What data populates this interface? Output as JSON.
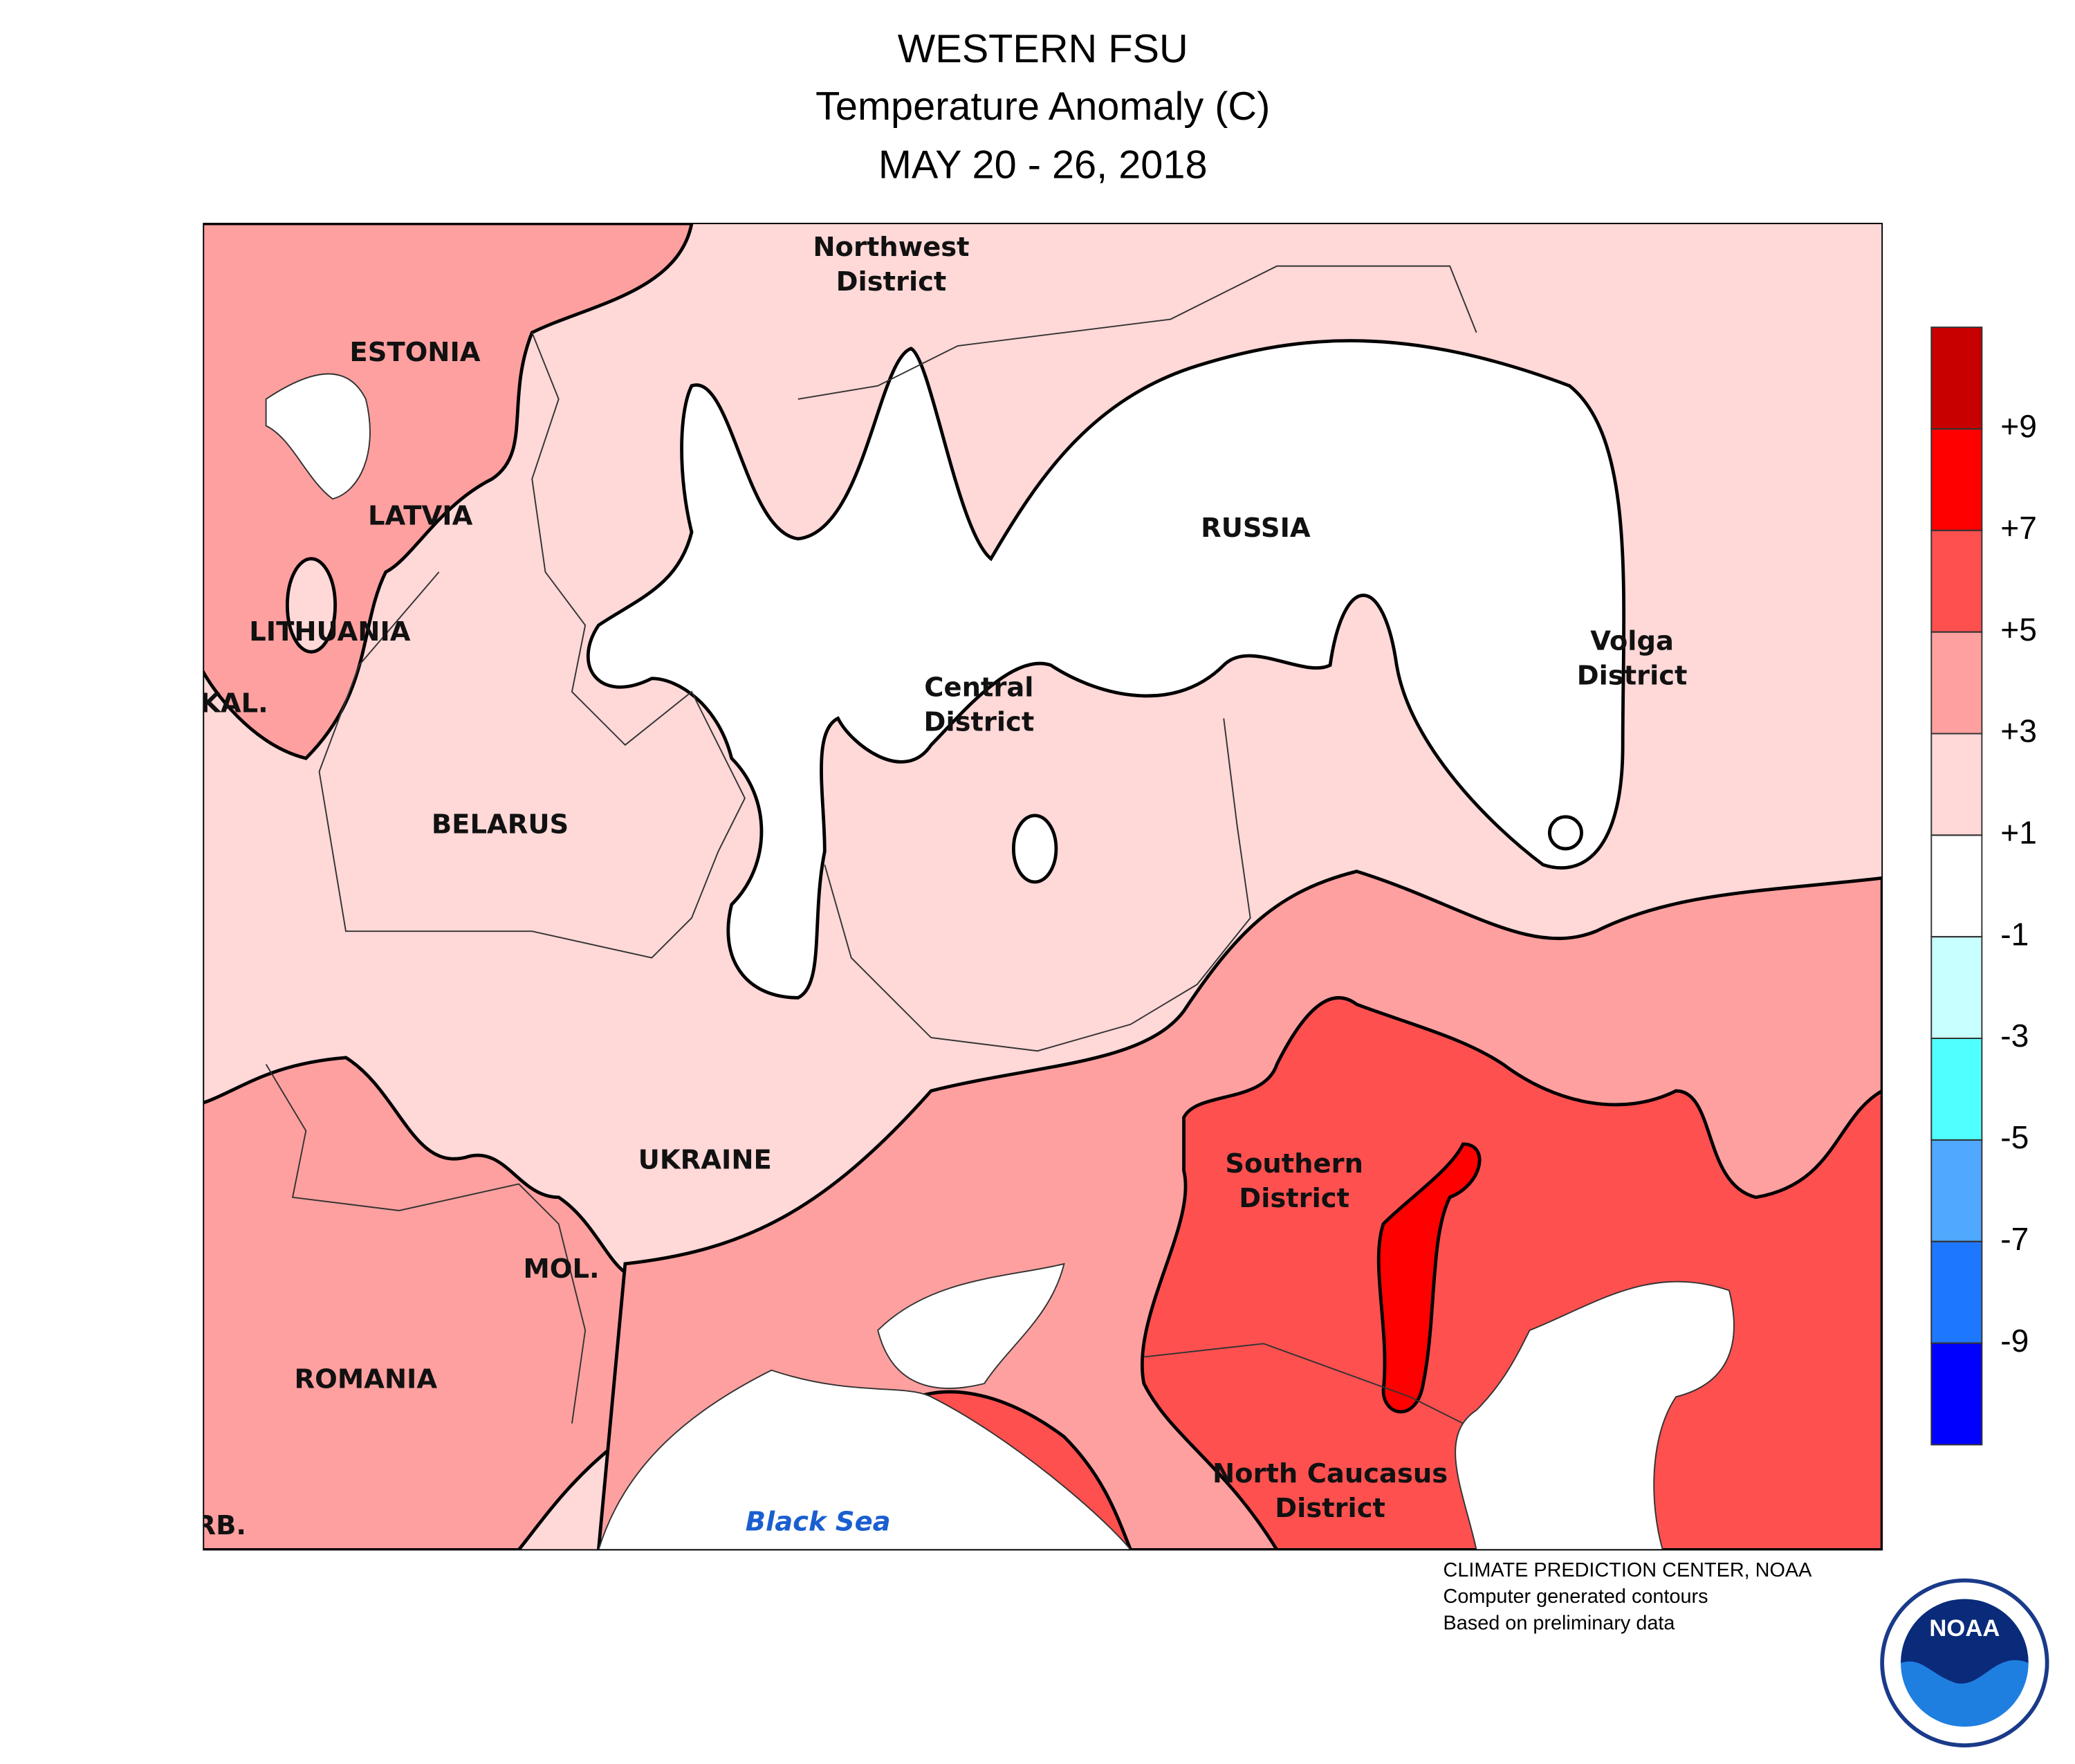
{
  "title": "WESTERN FSU",
  "subtitle": "Temperature Anomaly (C)",
  "date": "MAY 20 - 26, 2018",
  "labels": [
    [
      "Northwest",
      "District"
    ],
    [
      "ESTONIA"
    ],
    [
      "LATVIA"
    ],
    [
      "LITHUANIA"
    ],
    [
      "KAL."
    ],
    [
      "BELARUS"
    ],
    [
      "RUSSIA"
    ],
    [
      "Central",
      "District"
    ],
    [
      "Volga",
      "District"
    ],
    [
      "UKRAINE"
    ],
    [
      "MOL."
    ],
    [
      "ROMANIA"
    ],
    [
      "RB."
    ],
    [
      "Southern",
      "District"
    ],
    [
      "North Caucasus",
      "District"
    ],
    [
      "Black Sea"
    ]
  ],
  "colorbar": {
    "colors": [
      "#c80000",
      "#ff0000",
      "#ff5050",
      "#ffa0a0",
      "#ffd8d8",
      "#ffffff",
      "#c8ffff",
      "#50ffff",
      "#50a8ff",
      "#1e78ff",
      "#0000ff"
    ],
    "ticks": [
      {
        "value": 9,
        "label": "+9"
      },
      {
        "value": 7,
        "label": "+7"
      },
      {
        "value": 5,
        "label": "+5"
      },
      {
        "value": 3,
        "label": "+3"
      },
      {
        "value": 1,
        "label": "+1"
      },
      -1,
      -3,
      -5,
      -7,
      -9
    ]
  },
  "credits": [
    "CLIMATE PREDICTION CENTER, NOAA",
    "Computer generated contours",
    "Based on preliminary data"
  ],
  "logo_text": "NOAA"
}
